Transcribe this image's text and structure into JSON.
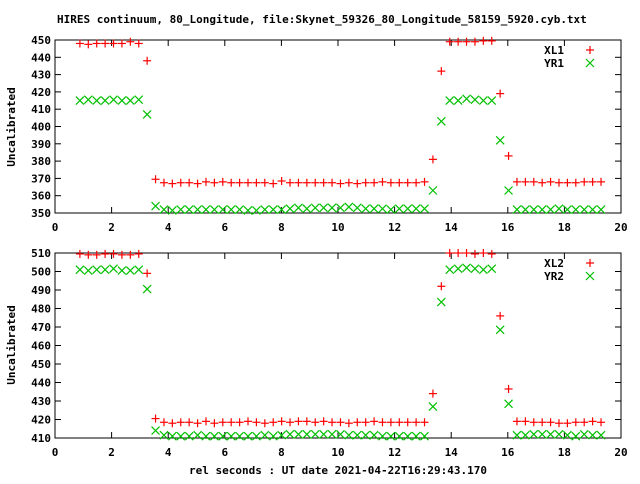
{
  "chart_data": [
    {
      "type": "scatter",
      "title": "HIRES continuum, 80_Longitude, file:Skynet_59326_80_Longitude_58159_5920.cyb.txt",
      "xlabel": "",
      "ylabel": "Uncalibrated",
      "xlim": [
        0,
        20
      ],
      "ylim": [
        350,
        450
      ],
      "xticks": [
        0,
        2,
        4,
        6,
        8,
        10,
        12,
        14,
        16,
        18,
        20
      ],
      "yticks": [
        350,
        360,
        370,
        380,
        390,
        400,
        410,
        420,
        430,
        440,
        450
      ],
      "legend": "top-right",
      "x_start": 0.88,
      "x_step": 0.297,
      "series": [
        {
          "name": "XL1",
          "marker": "+",
          "color": "#ff0000",
          "values": [
            448,
            447.5,
            448,
            448,
            448,
            448,
            449,
            448,
            438,
            369.5,
            367.5,
            367,
            367.5,
            367.5,
            367,
            368,
            367.5,
            368,
            367.5,
            367.5,
            367.5,
            367.5,
            367.5,
            367,
            368.5,
            367.5,
            367.5,
            367.5,
            367.5,
            367.5,
            367.5,
            367,
            367.5,
            367,
            367.5,
            367.5,
            368,
            367.5,
            367.5,
            367.5,
            367.5,
            368,
            381,
            432,
            449,
            449,
            449,
            449,
            449.5,
            449.5,
            419,
            383,
            368,
            368,
            368,
            367.5,
            368,
            367.5,
            367.5,
            367.5,
            368,
            368,
            368
          ]
        },
        {
          "name": "YR1",
          "marker": "x",
          "color": "#00c000",
          "values": [
            415,
            415.5,
            415,
            415,
            415.5,
            415,
            415,
            415.5,
            407,
            354,
            352,
            351.5,
            352,
            352,
            352,
            352,
            352,
            352,
            352,
            352,
            351.5,
            351.5,
            352,
            352,
            352,
            352.5,
            353,
            352.5,
            353,
            353,
            353,
            353,
            353.5,
            353,
            352.5,
            352.5,
            352.5,
            352,
            352.5,
            352.5,
            352.5,
            352.5,
            363,
            403,
            415,
            415,
            416,
            415.5,
            415,
            415,
            392,
            363,
            352,
            352,
            352,
            352,
            352,
            352.5,
            352,
            352,
            352,
            352,
            352
          ]
        }
      ]
    },
    {
      "type": "scatter",
      "xlabel": "rel seconds : UT date 2021-04-22T16:29:43.170",
      "ylabel": "Uncalibrated",
      "xlim": [
        0,
        20
      ],
      "ylim": [
        410,
        510
      ],
      "xticks": [
        0,
        2,
        4,
        6,
        8,
        10,
        12,
        14,
        16,
        18,
        20
      ],
      "yticks": [
        410,
        420,
        430,
        440,
        450,
        460,
        470,
        480,
        490,
        500,
        510
      ],
      "legend": "top-right",
      "x_start": 0.88,
      "x_step": 0.297,
      "series": [
        {
          "name": "XL2",
          "marker": "+",
          "color": "#ff0000",
          "values": [
            509.5,
            509,
            509,
            509.5,
            509.5,
            509,
            509,
            509.5,
            499,
            420.5,
            418.5,
            418,
            418.5,
            418.5,
            418,
            419,
            418,
            418.5,
            418.5,
            418.5,
            419,
            418.5,
            418,
            418.5,
            419,
            418.5,
            419,
            419,
            418.5,
            419,
            418.5,
            418.5,
            418,
            418.5,
            418.5,
            419,
            418.5,
            418.5,
            418.5,
            418.5,
            418.5,
            418.5,
            434,
            492,
            510,
            510,
            510,
            509.5,
            510,
            509.5,
            476,
            436.5,
            419,
            419,
            418.5,
            418.5,
            418.5,
            418,
            418,
            418.5,
            418.5,
            419,
            418.5
          ]
        },
        {
          "name": "YR2",
          "marker": "x",
          "color": "#00c000",
          "values": [
            501,
            500.5,
            501,
            501,
            501.5,
            500.5,
            500.5,
            501,
            490.5,
            414,
            411.5,
            411,
            411,
            411,
            411.5,
            411,
            411,
            411,
            411,
            411,
            411,
            411,
            411.5,
            411,
            411.5,
            412,
            412,
            412,
            412,
            412,
            412,
            412,
            411.5,
            411.5,
            411.5,
            411.5,
            411,
            411,
            411,
            411,
            411,
            411,
            427,
            483.5,
            501,
            501.5,
            502,
            501.5,
            501,
            501.5,
            468.5,
            428.5,
            411.5,
            411.5,
            412,
            412,
            412,
            412,
            411.5,
            411,
            412,
            411.5,
            411.5
          ]
        }
      ]
    }
  ]
}
